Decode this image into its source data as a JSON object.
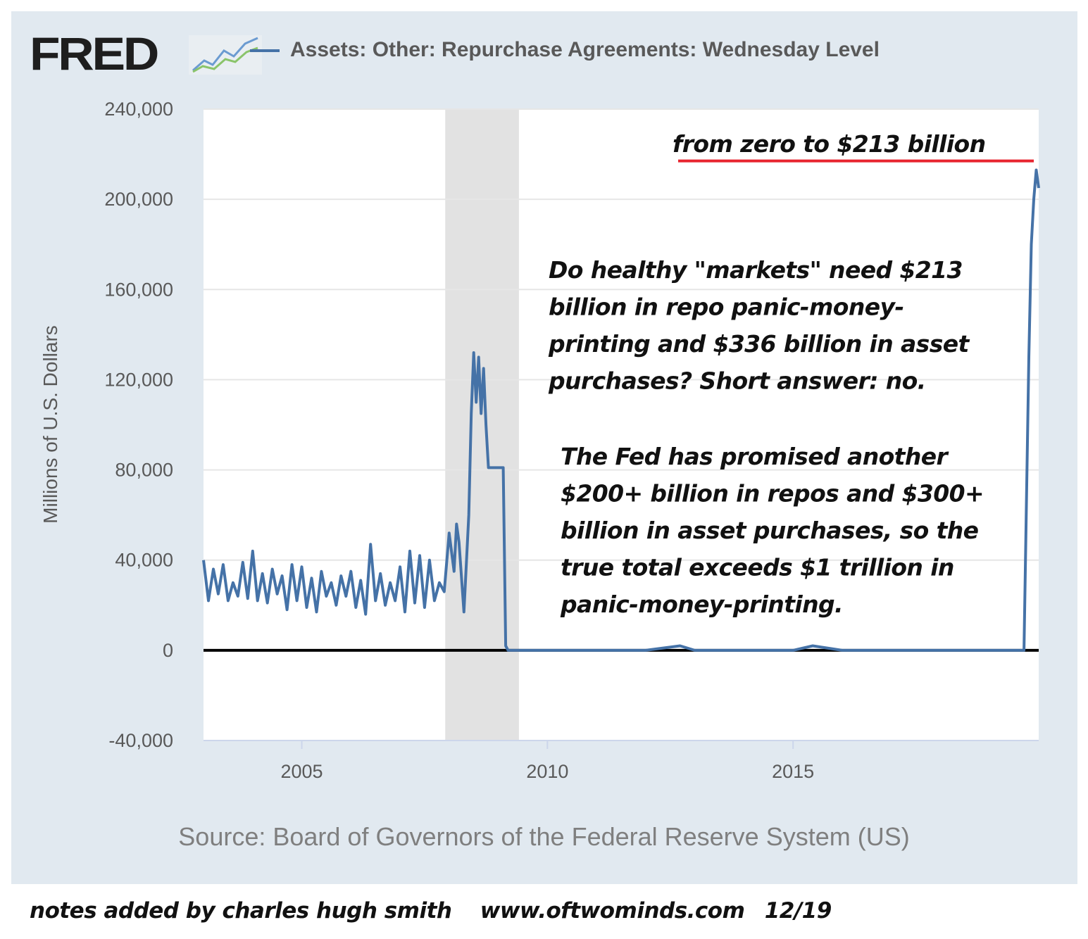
{
  "logo": {
    "text": "FRED",
    "icon": "chart-line-icon"
  },
  "colors": {
    "series": "#4572a7",
    "recession": "#e2e2e2",
    "annotation_line": "#e8242f",
    "panel": "#e1e9f0"
  },
  "chart_data": {
    "type": "line",
    "legend": "Assets: Other: Repurchase Agreements: Wednesday Level",
    "ylabel": "Millions of U.S. Dollars",
    "xlabel": "",
    "ylim": [
      -40000,
      240000
    ],
    "xlim": [
      2003.0,
      2020.0
    ],
    "yticks": [
      -40000,
      0,
      40000,
      80000,
      120000,
      160000,
      200000,
      240000
    ],
    "ytick_labels": [
      "-40,000",
      "0",
      "40,000",
      "80,000",
      "120,000",
      "160,000",
      "200,000",
      "240,000"
    ],
    "xticks": [
      2005,
      2010,
      2015
    ],
    "xtick_labels": [
      "2005",
      "2010",
      "2015"
    ],
    "grid": "horizontal",
    "recession_bands": [
      [
        2007.92,
        2009.42
      ]
    ],
    "series": [
      {
        "name": "Assets: Other: Repurchase Agreements: Wednesday Level",
        "x": [
          2003.0,
          2003.1,
          2003.2,
          2003.3,
          2003.4,
          2003.5,
          2003.6,
          2003.7,
          2003.8,
          2003.9,
          2004.0,
          2004.1,
          2004.2,
          2004.3,
          2004.4,
          2004.5,
          2004.6,
          2004.7,
          2004.8,
          2004.9,
          2005.0,
          2005.1,
          2005.2,
          2005.3,
          2005.4,
          2005.5,
          2005.6,
          2005.7,
          2005.8,
          2005.9,
          2006.0,
          2006.1,
          2006.2,
          2006.3,
          2006.4,
          2006.5,
          2006.6,
          2006.7,
          2006.8,
          2006.9,
          2007.0,
          2007.1,
          2007.2,
          2007.3,
          2007.4,
          2007.5,
          2007.6,
          2007.7,
          2007.8,
          2007.9,
          2008.0,
          2008.1,
          2008.15,
          2008.2,
          2008.3,
          2008.4,
          2008.45,
          2008.5,
          2008.55,
          2008.6,
          2008.65,
          2008.7,
          2008.75,
          2008.8,
          2008.9,
          2009.0,
          2009.1,
          2009.15,
          2009.2,
          2009.5,
          2010.0,
          2011.0,
          2012.0,
          2012.7,
          2013.0,
          2014.0,
          2015.0,
          2015.4,
          2016.0,
          2017.0,
          2018.0,
          2019.0,
          2019.7,
          2019.8,
          2019.85,
          2019.9,
          2019.95,
          2020.0
        ],
        "values": [
          40000,
          22000,
          36000,
          25000,
          38000,
          22000,
          30000,
          24000,
          39000,
          23000,
          44000,
          22000,
          34000,
          21000,
          36000,
          25000,
          33000,
          18000,
          38000,
          22000,
          37000,
          19000,
          32000,
          17000,
          35000,
          24000,
          30000,
          20000,
          33000,
          24000,
          35000,
          19000,
          31000,
          16000,
          47000,
          22000,
          34000,
          20000,
          30000,
          22000,
          37000,
          17000,
          44000,
          21000,
          42000,
          19000,
          40000,
          22000,
          30000,
          26000,
          52000,
          35000,
          56000,
          48000,
          17000,
          60000,
          105000,
          132000,
          110000,
          130000,
          105000,
          125000,
          100000,
          81000,
          81000,
          81000,
          81000,
          2000,
          0,
          0,
          0,
          0,
          0,
          2000,
          0,
          0,
          0,
          2000,
          0,
          0,
          0,
          0,
          0,
          130000,
          180000,
          200000,
          213000,
          205000
        ]
      }
    ],
    "annotations": [
      {
        "text": "from zero to $213 billion",
        "underline_value": 217000
      },
      {
        "text": "Do healthy \"markets\" need $213 billion in repo panic-money-printing and $336 billion in asset purchases? Short answer: no."
      },
      {
        "text": "The Fed has promised another $200+ billion in repos and $300+ billion in asset purchases, so the true total exceeds $1 trillion in panic-money-printing."
      }
    ],
    "source": "Source: Board of Governors of the Federal Reserve System (US)"
  },
  "annotation_lines": {
    "headline": [
      "from zero to $213 billion"
    ],
    "question": [
      "Do healthy \"markets\" need $213",
      "billion in repo panic-money-",
      "printing and $336 billion in asset",
      "purchases? Short answer: no."
    ],
    "promise": [
      "The Fed has promised another",
      "$200+ billion in repos and $300+",
      "billion in asset purchases, so the",
      "true total exceeds $1 trillion in",
      "panic-money-printing."
    ]
  },
  "footer": {
    "author": "notes added by charles hugh smith",
    "url": "www.oftwominds.com",
    "date": "12/19"
  }
}
